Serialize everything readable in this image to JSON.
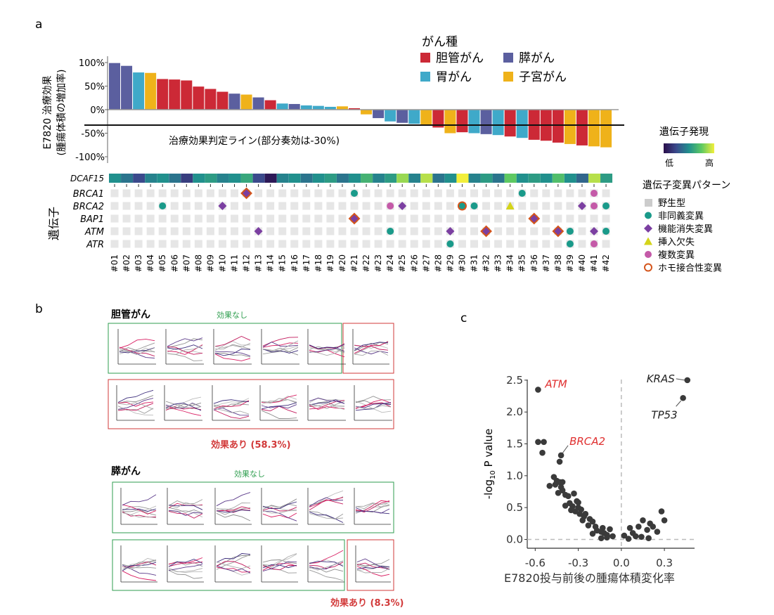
{
  "panel_a": {
    "letter": "a",
    "ylabel_line1": "E7820 治療効果",
    "ylabel_line2": "(腫瘍体積の増加率)",
    "threshold_label": "治療効果判定ライン(部分奏効は-30%)",
    "legend_title": "がん種",
    "legend_items": [
      {
        "label": "胆管がん",
        "color": "#cc2936"
      },
      {
        "label": "膵がん",
        "color": "#5b5f9f"
      },
      {
        "label": "胃がん",
        "color": "#3fa9c9"
      },
      {
        "label": "子宮がん",
        "color": "#efb21a"
      }
    ],
    "expr_title": "遺伝子発現",
    "expr_low": "低",
    "expr_high": "高",
    "expr_gene": "DCAF15",
    "mut_title": "遺伝子変異パターン",
    "mut_items": [
      {
        "label": "野生型",
        "shape": "square",
        "color": "#cccccc"
      },
      {
        "label": "非同義変異",
        "shape": "circle",
        "color": "#1a9a8a"
      },
      {
        "label": "機能消失変異",
        "shape": "diamond",
        "color": "#7b3fa1"
      },
      {
        "label": "挿入欠失",
        "shape": "triangle",
        "color": "#d4d41a"
      },
      {
        "label": "複数変異",
        "shape": "circle",
        "color": "#c45aa8"
      },
      {
        "label": "ホモ接合性変異",
        "shape": "ring",
        "color": "#d4541a"
      }
    ],
    "gene_axis_label": "遺伝子",
    "genes": [
      "BRCA1",
      "BRCA2",
      "BAP1",
      "ATM",
      "ATR"
    ]
  },
  "chart_data": [
    {
      "type": "bar",
      "ylabel": "E7820 治療効果 (腫瘍体積の増加率)",
      "yticks": [
        "100%",
        "50%",
        "0%",
        "-50%",
        "-100%"
      ],
      "ylim": [
        -100,
        110
      ],
      "threshold": -30,
      "categories": [
        "#01",
        "#02",
        "#03",
        "#04",
        "#05",
        "#06",
        "#07",
        "#08",
        "#09",
        "#10",
        "#11",
        "#12",
        "#13",
        "#14",
        "#15",
        "#16",
        "#17",
        "#18",
        "#19",
        "#20",
        "#21",
        "#22",
        "#23",
        "#24",
        "#25",
        "#26",
        "#27",
        "#28",
        "#29",
        "#30",
        "#31",
        "#32",
        "#33",
        "#34",
        "#35",
        "#36",
        "#37",
        "#38",
        "#39",
        "#40",
        "#41",
        "#42"
      ],
      "values": [
        99,
        93,
        79,
        78,
        65,
        64,
        62,
        49,
        44,
        38,
        34,
        32,
        26,
        20,
        13,
        12,
        9,
        8,
        6,
        7,
        3,
        -10,
        -18,
        -25,
        -28,
        -30,
        -32,
        -38,
        -50,
        -48,
        -50,
        -52,
        -54,
        -57,
        -60,
        -64,
        -66,
        -70,
        -73,
        -76,
        -78,
        -80
      ],
      "cancer": [
        "pancreatic",
        "pancreatic",
        "gastric",
        "uterine",
        "biliary",
        "biliary",
        "biliary",
        "biliary",
        "biliary",
        "biliary",
        "pancreatic",
        "uterine",
        "pancreatic",
        "biliary",
        "gastric",
        "pancreatic",
        "gastric",
        "gastric",
        "gastric",
        "uterine",
        "biliary",
        "uterine",
        "pancreatic",
        "gastric",
        "pancreatic",
        "gastric",
        "uterine",
        "biliary",
        "uterine",
        "biliary",
        "gastric",
        "pancreatic",
        "gastric",
        "biliary",
        "gastric",
        "biliary",
        "biliary",
        "biliary",
        "uterine",
        "biliary",
        "uterine",
        "uterine"
      ],
      "dcaf15_expression": [
        0.5,
        0.4,
        0.25,
        0.45,
        0.5,
        0.4,
        0.2,
        0.5,
        0.55,
        0.45,
        0.5,
        0.6,
        0.25,
        0.05,
        0.45,
        0.5,
        0.4,
        0.5,
        0.55,
        0.4,
        0.5,
        0.65,
        0.45,
        0.55,
        0.85,
        0.45,
        0.9,
        0.4,
        0.5,
        1.0,
        0.45,
        0.55,
        0.4,
        0.75,
        0.5,
        0.55,
        0.5,
        0.7,
        0.5,
        0.35,
        0.9,
        0.55
      ],
      "mutations": {
        "BRCA1": {
          "12": "ring_diamond",
          "21": "circle",
          "35": "circle",
          "41": "multi"
        },
        "BRCA2": {
          "05": "circle",
          "10": "diamond",
          "24": "multi",
          "25": "diamond",
          "30": "ring_circle",
          "31": "circle",
          "34": "triangle",
          "40": "diamond",
          "41": "multi",
          "42": "circle"
        },
        "BAP1": {
          "21": "ring_diamond",
          "36": "ring_diamond"
        },
        "ATM": {
          "13": "diamond",
          "24": "circle",
          "29": "diamond",
          "32": "ring_diamond",
          "38": "ring_diamond",
          "39": "circle",
          "41": "diamond",
          "42": "circle"
        },
        "ATR": {
          "29": "circle",
          "39": "circle",
          "41": "multi"
        }
      }
    },
    {
      "type": "scatter",
      "xlabel": "E7820投与前後の腫瘍体積変化率",
      "ylabel": "-log10 P value",
      "xticks": [
        "-0.6",
        "-0.3",
        "0.0",
        "0.3"
      ],
      "yticks": [
        "0.0",
        "0.5",
        "1.0",
        "1.5",
        "2.0",
        "2.5"
      ],
      "xlim": [
        -0.68,
        0.52
      ],
      "ylim": [
        -0.05,
        2.62
      ],
      "labels": [
        {
          "text": "ATM",
          "color": "#e03030",
          "x": -0.58,
          "y": 2.35
        },
        {
          "text": "BRCA2",
          "color": "#e03030",
          "x": -0.42,
          "y": 1.32
        },
        {
          "text": "KRAS",
          "color": "#222222",
          "x": 0.46,
          "y": 2.5
        },
        {
          "text": "TP53",
          "color": "#222222",
          "x": 0.43,
          "y": 2.22
        }
      ],
      "points": [
        [
          -0.58,
          2.35
        ],
        [
          0.46,
          2.5
        ],
        [
          0.43,
          2.22
        ],
        [
          -0.58,
          1.53
        ],
        [
          -0.54,
          1.53
        ],
        [
          -0.55,
          1.36
        ],
        [
          -0.42,
          1.32
        ],
        [
          -0.43,
          1.22
        ],
        [
          -0.47,
          0.98
        ],
        [
          -0.45,
          0.92
        ],
        [
          -0.46,
          0.86
        ],
        [
          -0.43,
          0.9
        ],
        [
          -0.42,
          0.82
        ],
        [
          -0.41,
          0.77
        ],
        [
          -0.44,
          0.73
        ],
        [
          -0.39,
          0.7
        ],
        [
          -0.37,
          0.68
        ],
        [
          -0.33,
          0.72
        ],
        [
          -0.36,
          0.57
        ],
        [
          -0.34,
          0.52
        ],
        [
          -0.31,
          0.6
        ],
        [
          -0.3,
          0.58
        ],
        [
          -0.3,
          0.5
        ],
        [
          -0.28,
          0.47
        ],
        [
          -0.29,
          0.4
        ],
        [
          -0.26,
          0.36
        ],
        [
          -0.25,
          0.4
        ],
        [
          -0.22,
          0.32
        ],
        [
          -0.23,
          0.22
        ],
        [
          -0.2,
          0.28
        ],
        [
          -0.18,
          0.2
        ],
        [
          -0.17,
          0.14
        ],
        [
          -0.14,
          0.12
        ],
        [
          -0.13,
          0.18
        ],
        [
          -0.12,
          0.1
        ],
        [
          -0.1,
          0.07
        ],
        [
          -0.08,
          0.16
        ],
        [
          -0.06,
          0.05
        ],
        [
          -0.1,
          0.03
        ],
        [
          -0.14,
          0.02
        ],
        [
          -0.2,
          0.09
        ],
        [
          -0.27,
          0.3
        ],
        [
          -0.32,
          0.44
        ],
        [
          -0.35,
          0.46
        ],
        [
          -0.39,
          0.53
        ],
        [
          -0.41,
          0.9
        ],
        [
          -0.5,
          0.84
        ],
        [
          0.06,
          0.18
        ],
        [
          0.08,
          0.1
        ],
        [
          0.12,
          0.2
        ],
        [
          0.15,
          0.3
        ],
        [
          0.18,
          0.15
        ],
        [
          0.22,
          0.2
        ],
        [
          0.28,
          0.44
        ],
        [
          0.3,
          0.3
        ],
        [
          0.25,
          0.12
        ],
        [
          0.02,
          0.06
        ],
        [
          0.05,
          0.01
        ],
        [
          0.1,
          0.05
        ],
        [
          0.14,
          0.04
        ],
        [
          0.19,
          0.02
        ],
        [
          0.2,
          0.25
        ]
      ]
    }
  ],
  "panel_b": {
    "letter": "b",
    "group1_title": "胆管がん",
    "group1_no_effect": "効果なし",
    "group1_effect": "効果あり (58.3%)",
    "group2_title": "膵がん",
    "group2_no_effect": "効果なし",
    "group2_effect": "効果あり (8.3%)"
  },
  "panel_c": {
    "letter": "c",
    "ylabel_base": "-log",
    "ylabel_sub": "10",
    "ylabel_rest": " P value"
  },
  "colors": {
    "biliary": "#cc2936",
    "pancreatic": "#5b5f9f",
    "gastric": "#3fa9c9",
    "uterine": "#efb21a",
    "green_box": "#2f9e4f",
    "red_box": "#d23a3a"
  }
}
